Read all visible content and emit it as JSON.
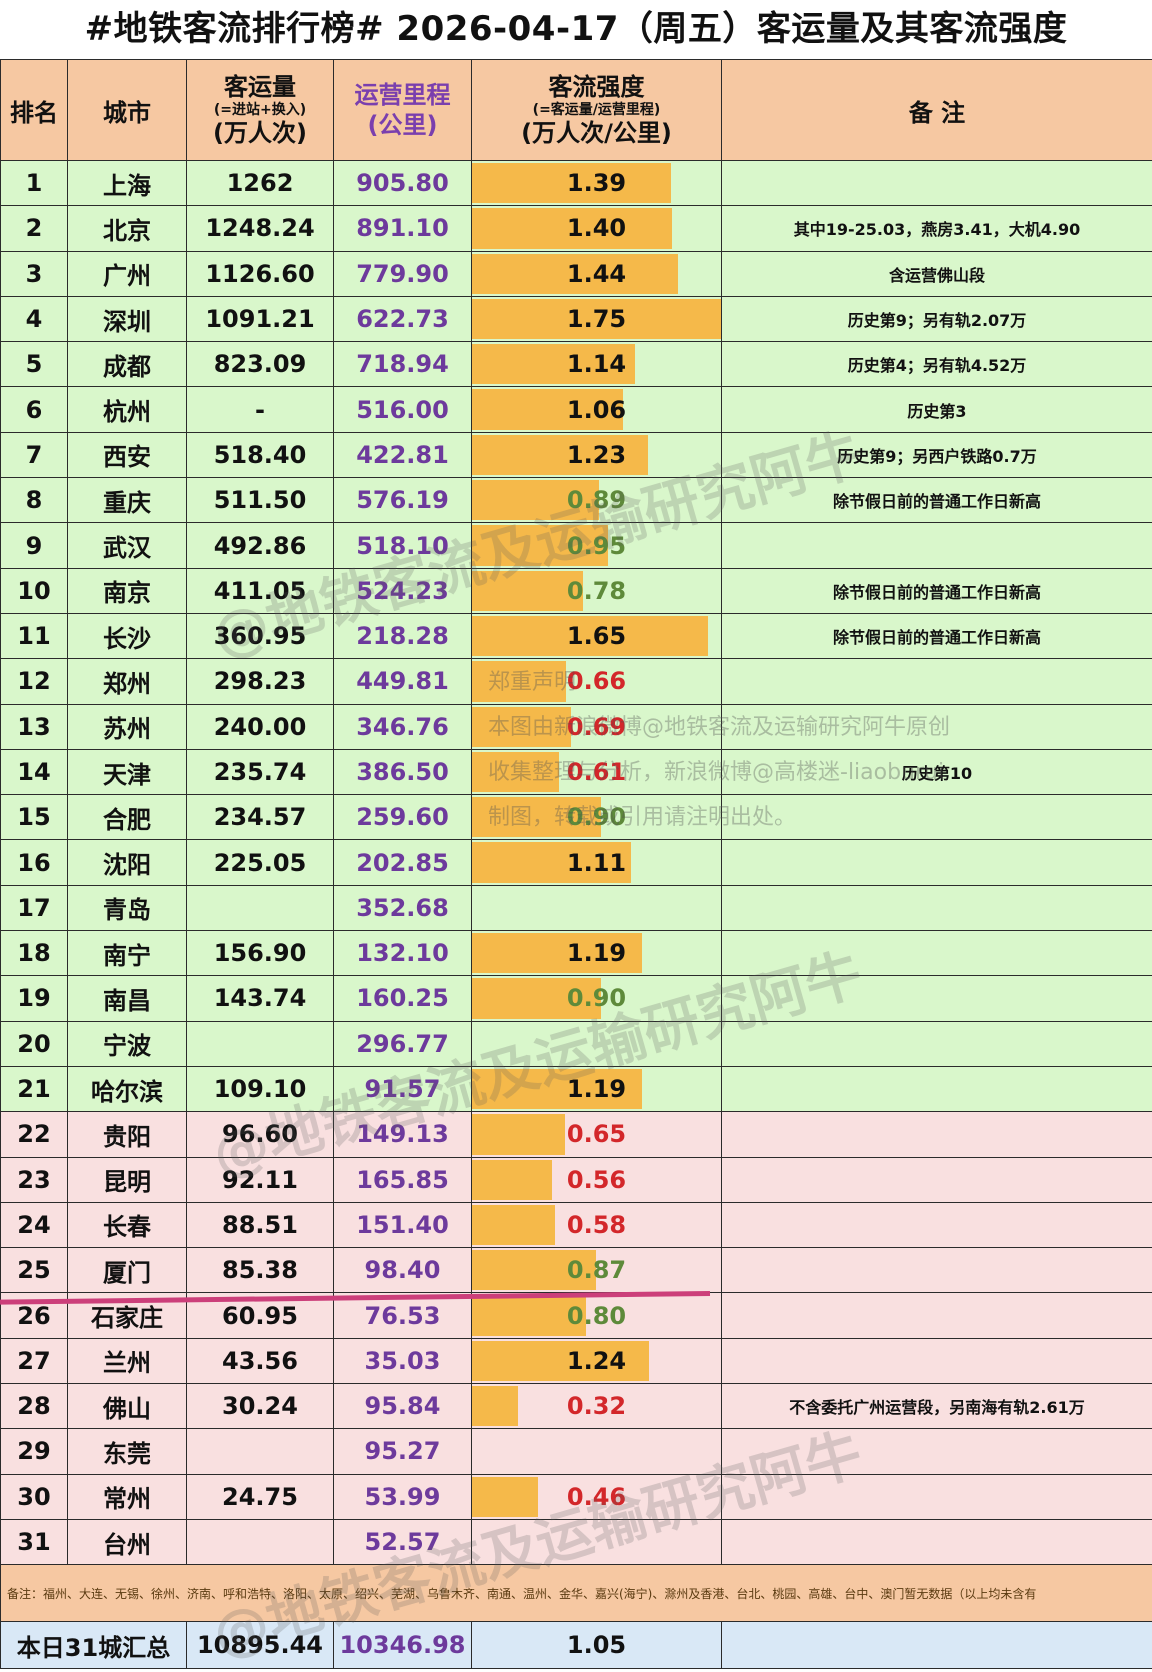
{
  "title": "#地铁客流排行榜# 2026-04-17（周五）客运量及其客流强度",
  "header": {
    "rank": "排名",
    "city": "城市",
    "volume_line1": "客运量",
    "volume_line2": "(=进站+换入)",
    "volume_line3": "(万人次)",
    "mileage_line1": "运营里程",
    "mileage_line2": "(公里)",
    "density_line1": "客流强度",
    "density_line2": "(=客运量/运营里程)",
    "density_line3": "(万人次/公里)",
    "note": "备 注"
  },
  "colors": {
    "header_bg": "#f6c8a2",
    "top21_bg": "#d9f7cb",
    "rest_bg": "#f9e0e0",
    "bar": "#f5b94a",
    "mileage_text": "#6d3a9c",
    "value_green": "#5e8a3a",
    "value_red": "#d3272a",
    "total_bg": "#d9e8f6",
    "cutoff_line": "#cc3f7a"
  },
  "chart_data": {
    "type": "table",
    "bar_column": "density",
    "bar_max": 1.75,
    "rows": [
      {
        "rank": "1",
        "city": "上海",
        "volume": "1262",
        "mileage": "905.80",
        "density": "1.39",
        "note": "",
        "band": "green",
        "val_color": "black"
      },
      {
        "rank": "2",
        "city": "北京",
        "volume": "1248.24",
        "mileage": "891.10",
        "density": "1.40",
        "note": "其中19-25.03，燕房3.41，大机4.90",
        "band": "green",
        "val_color": "black"
      },
      {
        "rank": "3",
        "city": "广州",
        "volume": "1126.60",
        "mileage": "779.90",
        "density": "1.44",
        "note": "含运营佛山段",
        "band": "green",
        "val_color": "black"
      },
      {
        "rank": "4",
        "city": "深圳",
        "volume": "1091.21",
        "mileage": "622.73",
        "density": "1.75",
        "note": "历史第9；另有轨2.07万",
        "band": "green",
        "val_color": "black"
      },
      {
        "rank": "5",
        "city": "成都",
        "volume": "823.09",
        "mileage": "718.94",
        "density": "1.14",
        "note": "历史第4；另有轨4.52万",
        "band": "green",
        "val_color": "black"
      },
      {
        "rank": "6",
        "city": "杭州",
        "volume": "-",
        "mileage": "516.00",
        "density": "1.06",
        "note": "历史第3",
        "band": "green",
        "val_color": "black"
      },
      {
        "rank": "7",
        "city": "西安",
        "volume": "518.40",
        "mileage": "422.81",
        "density": "1.23",
        "note": "历史第9；另西户铁路0.7万",
        "band": "green",
        "val_color": "black"
      },
      {
        "rank": "8",
        "city": "重庆",
        "volume": "511.50",
        "mileage": "576.19",
        "density": "0.89",
        "note": "除节假日前的普通工作日新高",
        "band": "green",
        "val_color": "green"
      },
      {
        "rank": "9",
        "city": "武汉",
        "volume": "492.86",
        "mileage": "518.10",
        "density": "0.95",
        "note": "",
        "band": "green",
        "val_color": "green"
      },
      {
        "rank": "10",
        "city": "南京",
        "volume": "411.05",
        "mileage": "524.23",
        "density": "0.78",
        "note": "除节假日前的普通工作日新高",
        "band": "green",
        "val_color": "green"
      },
      {
        "rank": "11",
        "city": "长沙",
        "volume": "360.95",
        "mileage": "218.28",
        "density": "1.65",
        "note": "除节假日前的普通工作日新高",
        "band": "green",
        "val_color": "black"
      },
      {
        "rank": "12",
        "city": "郑州",
        "volume": "298.23",
        "mileage": "449.81",
        "density": "0.66",
        "note": "",
        "band": "green",
        "val_color": "red"
      },
      {
        "rank": "13",
        "city": "苏州",
        "volume": "240.00",
        "mileage": "346.76",
        "density": "0.69",
        "note": "",
        "band": "green",
        "val_color": "red"
      },
      {
        "rank": "14",
        "city": "天津",
        "volume": "235.74",
        "mileage": "386.50",
        "density": "0.61",
        "note": "历史第10",
        "band": "green",
        "val_color": "red"
      },
      {
        "rank": "15",
        "city": "合肥",
        "volume": "234.57",
        "mileage": "259.60",
        "density": "0.90",
        "note": "",
        "band": "green",
        "val_color": "green"
      },
      {
        "rank": "16",
        "city": "沈阳",
        "volume": "225.05",
        "mileage": "202.85",
        "density": "1.11",
        "note": "",
        "band": "green",
        "val_color": "black"
      },
      {
        "rank": "17",
        "city": "青岛",
        "volume": "",
        "mileage": "352.68",
        "density": "",
        "note": "",
        "band": "green",
        "val_color": "black"
      },
      {
        "rank": "18",
        "city": "南宁",
        "volume": "156.90",
        "mileage": "132.10",
        "density": "1.19",
        "note": "",
        "band": "green",
        "val_color": "black"
      },
      {
        "rank": "19",
        "city": "南昌",
        "volume": "143.74",
        "mileage": "160.25",
        "density": "0.90",
        "note": "",
        "band": "green",
        "val_color": "green"
      },
      {
        "rank": "20",
        "city": "宁波",
        "volume": "",
        "mileage": "296.77",
        "density": "",
        "note": "",
        "band": "green",
        "val_color": "black"
      },
      {
        "rank": "21",
        "city": "哈尔滨",
        "volume": "109.10",
        "mileage": "91.57",
        "density": "1.19",
        "note": "",
        "band": "green",
        "val_color": "black"
      },
      {
        "rank": "22",
        "city": "贵阳",
        "volume": "96.60",
        "mileage": "149.13",
        "density": "0.65",
        "note": "",
        "band": "pink",
        "val_color": "red"
      },
      {
        "rank": "23",
        "city": "昆明",
        "volume": "92.11",
        "mileage": "165.85",
        "density": "0.56",
        "note": "",
        "band": "pink",
        "val_color": "red"
      },
      {
        "rank": "24",
        "city": "长春",
        "volume": "88.51",
        "mileage": "151.40",
        "density": "0.58",
        "note": "",
        "band": "pink",
        "val_color": "red"
      },
      {
        "rank": "25",
        "city": "厦门",
        "volume": "85.38",
        "mileage": "98.40",
        "density": "0.87",
        "note": "",
        "band": "pink",
        "val_color": "green"
      },
      {
        "rank": "26",
        "city": "石家庄",
        "volume": "60.95",
        "mileage": "76.53",
        "density": "0.80",
        "note": "",
        "band": "pink",
        "val_color": "green"
      },
      {
        "rank": "27",
        "city": "兰州",
        "volume": "43.56",
        "mileage": "35.03",
        "density": "1.24",
        "note": "",
        "band": "pink",
        "val_color": "black"
      },
      {
        "rank": "28",
        "city": "佛山",
        "volume": "30.24",
        "mileage": "95.84",
        "density": "0.32",
        "note": "不含委托广州运营段，另南海有轨2.61万",
        "band": "pink",
        "val_color": "red"
      },
      {
        "rank": "29",
        "city": "东莞",
        "volume": "",
        "mileage": "95.27",
        "density": "",
        "note": "",
        "band": "pink",
        "val_color": "black"
      },
      {
        "rank": "30",
        "city": "常州",
        "volume": "24.75",
        "mileage": "53.99",
        "density": "0.46",
        "note": "",
        "band": "pink",
        "val_color": "red"
      },
      {
        "rank": "31",
        "city": "台州",
        "volume": "",
        "mileage": "52.57",
        "density": "",
        "note": "",
        "band": "pink",
        "val_color": "black"
      }
    ],
    "total": {
      "label": "本日31城汇总",
      "volume": "10895.44",
      "mileage": "10346.98",
      "density": "1.05"
    }
  },
  "footnote": "备注：福州、大连、无锡、徐州、济南、呼和浩特、洛阳、太原、绍兴、芜湖、乌鲁木齐、南通、温州、金华、嘉兴(海宁)、滁州及香港、台北、桃园、高雄、台中、澳门暂无数据（以上均未含有",
  "statement": {
    "line1": "郑重声明",
    "line2": "本图由新浪微博@地铁客流及运输研究阿牛原创",
    "line3": "收集整理与分析，新浪微博@高楼迷-liaoburui",
    "line4": "制图，转载或引用请注明出处。"
  },
  "watermark": "@地铁客流及运输研究阿牛"
}
